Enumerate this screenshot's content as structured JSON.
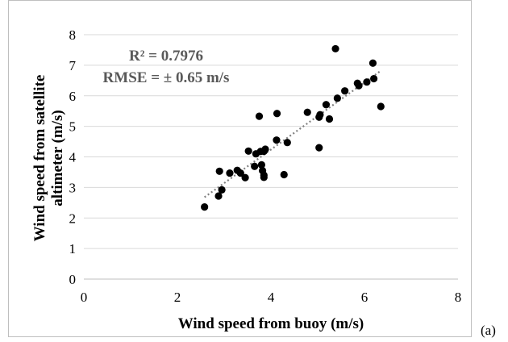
{
  "chart_data": {
    "type": "scatter",
    "title": "",
    "xlabel": "Wind  speed from buoy (m/s)",
    "ylabel_lines": [
      "Wind  speed from satellite",
      "altimeter (m/s)"
    ],
    "xlim": [
      0,
      8
    ],
    "ylim": [
      0,
      8
    ],
    "xticks": [
      "0",
      "2",
      "4",
      "6",
      "8"
    ],
    "yticks": [
      "0",
      "1",
      "2",
      "3",
      "4",
      "5",
      "6",
      "7",
      "8"
    ],
    "grid": "horizontal",
    "legend": "none",
    "annotations": [
      "R² = 0.7976",
      "RMSE = ± 0.65 m/s"
    ],
    "series": [
      {
        "points": [
          [
            2.58,
            2.36
          ],
          [
            2.88,
            2.72
          ],
          [
            2.9,
            3.53
          ],
          [
            2.95,
            2.92
          ],
          [
            3.12,
            3.47
          ],
          [
            3.28,
            3.56
          ],
          [
            3.35,
            3.47
          ],
          [
            3.45,
            3.32
          ],
          [
            3.52,
            4.19
          ],
          [
            3.65,
            3.69
          ],
          [
            3.68,
            4.1
          ],
          [
            3.75,
            5.33
          ],
          [
            3.78,
            4.18
          ],
          [
            3.8,
            3.74
          ],
          [
            3.82,
            3.55
          ],
          [
            3.85,
            4.18
          ],
          [
            3.85,
            3.33
          ],
          [
            3.85,
            3.4
          ],
          [
            3.88,
            4.25
          ],
          [
            4.12,
            4.55
          ],
          [
            4.13,
            5.42
          ],
          [
            4.28,
            3.42
          ],
          [
            4.35,
            4.47
          ],
          [
            4.78,
            5.46
          ],
          [
            5.03,
            4.3
          ],
          [
            5.03,
            5.3
          ],
          [
            5.05,
            5.38
          ],
          [
            5.18,
            5.71
          ],
          [
            5.25,
            5.24
          ],
          [
            5.38,
            7.54
          ],
          [
            5.42,
            5.92
          ],
          [
            5.58,
            6.16
          ],
          [
            5.85,
            6.41
          ],
          [
            5.88,
            6.33
          ],
          [
            6.05,
            6.45
          ],
          [
            6.18,
            7.07
          ],
          [
            6.2,
            6.56
          ],
          [
            6.35,
            5.65
          ]
        ],
        "color": "#000000"
      }
    ],
    "trendline": {
      "style": "dotted",
      "color": "#808080",
      "from": [
        2.58,
        2.68
      ],
      "to": [
        6.35,
        6.82
      ]
    }
  },
  "panel_label": "(a)",
  "colors": {
    "axis": "#bfbfbf",
    "grid": "#d9d9d9",
    "text": "#000000",
    "annotation": "#595959"
  }
}
